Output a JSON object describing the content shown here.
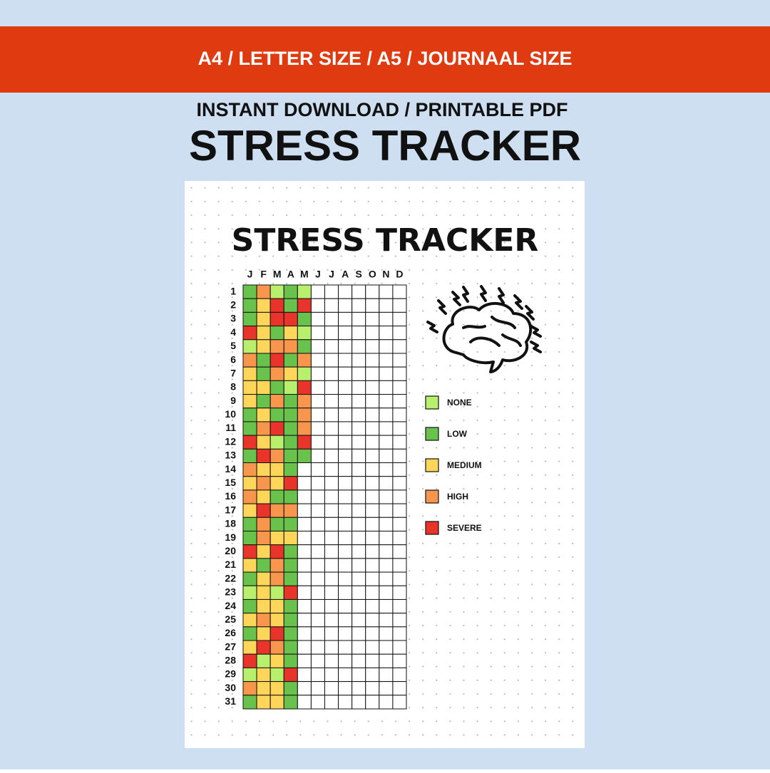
{
  "banner": "A4 / LETTER SIZE / A5 / JOURNAAL SIZE",
  "subtitle": "INSTANT DOWNLOAD / PRINTABLE PDF",
  "title": "STRESS TRACKER",
  "sheet": {
    "title": "STRESS TRACKER",
    "months": [
      "J",
      "F",
      "M",
      "A",
      "M",
      "J",
      "J",
      "A",
      "S",
      "O",
      "N",
      "D"
    ],
    "days": [
      "1",
      "2",
      "3",
      "4",
      "5",
      "6",
      "7",
      "8",
      "9",
      "10",
      "11",
      "12",
      "13",
      "14",
      "15",
      "16",
      "17",
      "18",
      "19",
      "20",
      "21",
      "22",
      "23",
      "24",
      "25",
      "26",
      "27",
      "28",
      "29",
      "30",
      "31"
    ],
    "legend": [
      {
        "label": "NONE",
        "color": "#b8f06e"
      },
      {
        "label": "LOW",
        "color": "#69c24b"
      },
      {
        "label": "MEDIUM",
        "color": "#ffd65a"
      },
      {
        "label": "HIGH",
        "color": "#f7964c"
      },
      {
        "label": "SEVERE",
        "color": "#e8342b"
      }
    ],
    "grid": [
      [
        1,
        3,
        0,
        1,
        0
      ],
      [
        1,
        2,
        4,
        1,
        4
      ],
      [
        1,
        2,
        4,
        4,
        1
      ],
      [
        4,
        2,
        1,
        2,
        0
      ],
      [
        0,
        2,
        3,
        3,
        1
      ],
      [
        3,
        1,
        4,
        1,
        3
      ],
      [
        2,
        1,
        3,
        2,
        0
      ],
      [
        2,
        2,
        1,
        0,
        4
      ],
      [
        2,
        1,
        3,
        1,
        3
      ],
      [
        1,
        2,
        1,
        1,
        3
      ],
      [
        1,
        3,
        4,
        1,
        3
      ],
      [
        4,
        2,
        0,
        1,
        4
      ],
      [
        1,
        4,
        3,
        1,
        1
      ],
      [
        3,
        2,
        2,
        1
      ],
      [
        2,
        3,
        2,
        4
      ],
      [
        3,
        2,
        1,
        1
      ],
      [
        2,
        4,
        3,
        3
      ],
      [
        1,
        3,
        1,
        1
      ],
      [
        1,
        3,
        2,
        2
      ],
      [
        4,
        2,
        4,
        1
      ],
      [
        2,
        1,
        3,
        1
      ],
      [
        1,
        2,
        3,
        1
      ],
      [
        0,
        2,
        0,
        4
      ],
      [
        1,
        2,
        2,
        1
      ],
      [
        2,
        3,
        2,
        1
      ],
      [
        1,
        2,
        4,
        1
      ],
      [
        2,
        4,
        3,
        1
      ],
      [
        4,
        0,
        2,
        1
      ],
      [
        0,
        2,
        0,
        4
      ],
      [
        3,
        2,
        2,
        1
      ],
      [
        1,
        2,
        2,
        1
      ]
    ]
  }
}
